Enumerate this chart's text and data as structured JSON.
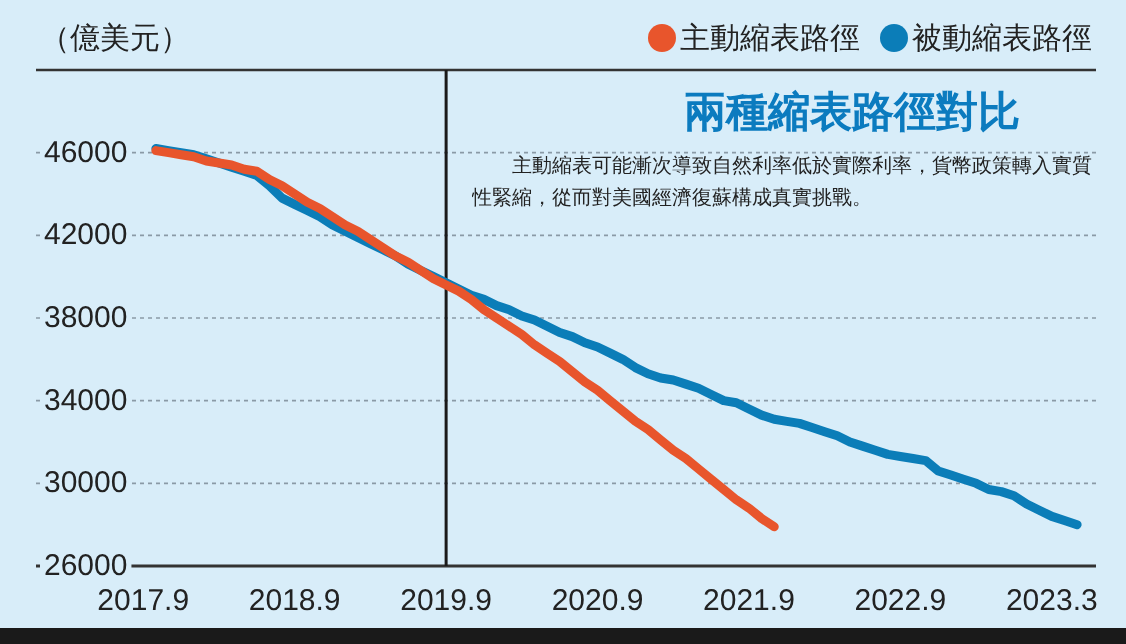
{
  "chart_data": {
    "type": "line",
    "title": "兩種縮表路徑對比",
    "ylabel": "（億美元）",
    "annotations": [
      "主動縮表可能漸次導致自然利率低於實際利率，貨幣政策轉入實質性緊縮，從而對美國經濟復蘇構成真實挑戰。"
    ],
    "categories": [
      null,
      null,
      null,
      null,
      null,
      null,
      null,
      null,
      "2017.9",
      null,
      null,
      null,
      null,
      null,
      null,
      null,
      null,
      null,
      null,
      null,
      "2018.9",
      null,
      null,
      null,
      null,
      null,
      null,
      null,
      null,
      null,
      null,
      null,
      "2019.9",
      null,
      null,
      null,
      null,
      null,
      null,
      null,
      null,
      null,
      null,
      null,
      "2020.9",
      null,
      null,
      null,
      null,
      null,
      null,
      null,
      null,
      null,
      null,
      null,
      "2021.9",
      null,
      null,
      null,
      null,
      null,
      null,
      null,
      null,
      null,
      null,
      null,
      "2022.9",
      null,
      null,
      null,
      null,
      null,
      null,
      null,
      null,
      null,
      null,
      null,
      "2023.3",
      null,
      null,
      null
    ],
    "ylim": [
      26000,
      50000
    ],
    "yticks": [
      26000,
      30000,
      34000,
      38000,
      42000,
      46000
    ],
    "grid": "y",
    "legend": "top right",
    "line_style": "solid",
    "marker": "none",
    "ref_lines": [
      {
        "axis": "x",
        "value": "2019.9",
        "color": "#1a1a1a"
      }
    ],
    "series": [
      {
        "name": "主動縮表路徑",
        "color": "#e8552c",
        "values": [
          null,
          null,
          null,
          null,
          null,
          null,
          null,
          null,
          null,
          46100,
          46000,
          45900,
          45800,
          45600,
          45500,
          45400,
          45200,
          45100,
          44700,
          44400,
          44000,
          43600,
          43300,
          42900,
          42500,
          42200,
          41800,
          41400,
          41000,
          40700,
          40300,
          39900,
          39600,
          39300,
          38900,
          38400,
          38000,
          37600,
          37200,
          36700,
          36300,
          35900,
          35400,
          34900,
          34500,
          34000,
          33500,
          33000,
          32600,
          32100,
          31600,
          31200,
          30700,
          30200,
          29700,
          29200,
          28800,
          28300,
          27900,
          null,
          null,
          null,
          null,
          null,
          null,
          null,
          null,
          null,
          null,
          null,
          null,
          null,
          null,
          null,
          null,
          null,
          null,
          null,
          null,
          null,
          null,
          null,
          null,
          null
        ]
      },
      {
        "name": "被動縮表路徑",
        "color": "#0b7db8",
        "values": [
          null,
          null,
          null,
          null,
          null,
          null,
          null,
          null,
          null,
          46200,
          46100,
          46000,
          45900,
          45700,
          45500,
          45300,
          45100,
          44900,
          44400,
          43800,
          43500,
          43200,
          42900,
          42500,
          42200,
          41900,
          41600,
          41300,
          41000,
          40600,
          40300,
          40000,
          39700,
          39400,
          39100,
          38900,
          38600,
          38400,
          38100,
          37900,
          37600,
          37300,
          37100,
          36800,
          36600,
          36300,
          36000,
          35600,
          35300,
          35100,
          35000,
          34800,
          34600,
          34300,
          34000,
          33900,
          33600,
          33300,
          33100,
          33000,
          32900,
          32700,
          32500,
          32300,
          32000,
          31800,
          31600,
          31400,
          31300,
          31200,
          31100,
          30600,
          30400,
          30200,
          30000,
          29700,
          29600,
          29400,
          29000,
          28700,
          28400,
          28200,
          28000,
          null
        ]
      }
    ]
  }
}
